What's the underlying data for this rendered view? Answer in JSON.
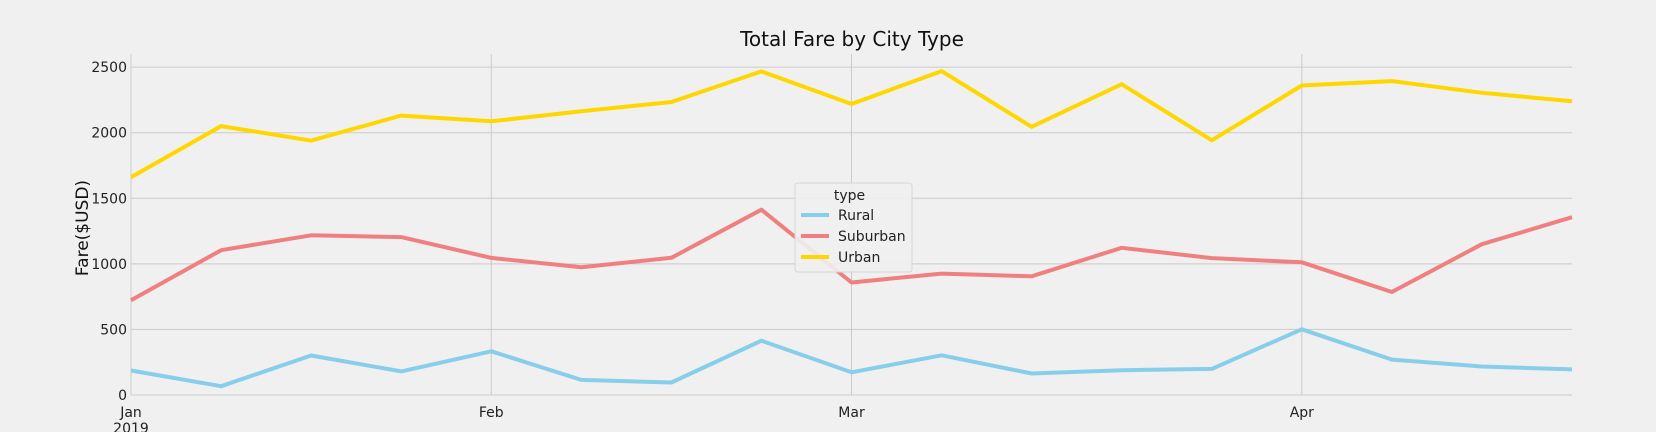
{
  "chart_data": {
    "type": "line",
    "title": "Total Fare by City Type",
    "xlabel": "",
    "ylabel": "Fare($USD)",
    "x": [
      "2019-01-06",
      "2019-01-13",
      "2019-01-20",
      "2019-01-27",
      "2019-02-03",
      "2019-02-10",
      "2019-02-17",
      "2019-02-24",
      "2019-03-03",
      "2019-03-10",
      "2019-03-17",
      "2019-03-24",
      "2019-03-31",
      "2019-04-07",
      "2019-04-14",
      "2019-04-21",
      "2019-04-28"
    ],
    "xlim": [
      "2019-01-06",
      "2019-04-28"
    ],
    "x_ticks": [
      {
        "date": "2019-01-06",
        "label": "Jan",
        "sublabel": "2019"
      },
      {
        "date": "2019-02-03",
        "label": "Feb",
        "sublabel": ""
      },
      {
        "date": "2019-03-03",
        "label": "Mar",
        "sublabel": ""
      },
      {
        "date": "2019-04-07",
        "label": "Apr",
        "sublabel": ""
      }
    ],
    "ylim": [
      0,
      2600
    ],
    "y_ticks": [
      0,
      500,
      1000,
      1500,
      2000,
      2500
    ],
    "grid": true,
    "legend": {
      "title": "type",
      "placement": "center"
    },
    "series": [
      {
        "name": "Rural",
        "color": "#87ceeb",
        "values": [
          187,
          67,
          301,
          180,
          333,
          115,
          95,
          414,
          173,
          303,
          164,
          189,
          199,
          501,
          270,
          217,
          195
        ]
      },
      {
        "name": "Suburban",
        "color": "#f08080",
        "values": [
          722,
          1104,
          1218,
          1204,
          1045,
          974,
          1046,
          1413,
          858,
          926,
          905,
          1122,
          1044,
          1012,
          785,
          1150,
          1356
        ]
      },
      {
        "name": "Urban",
        "color": "#ffd700",
        "values": [
          1661,
          2050,
          1940,
          2130,
          2087,
          2163,
          2234,
          2467,
          2219,
          2470,
          2045,
          2370,
          1942,
          2360,
          2393,
          2304,
          2239
        ]
      }
    ]
  }
}
